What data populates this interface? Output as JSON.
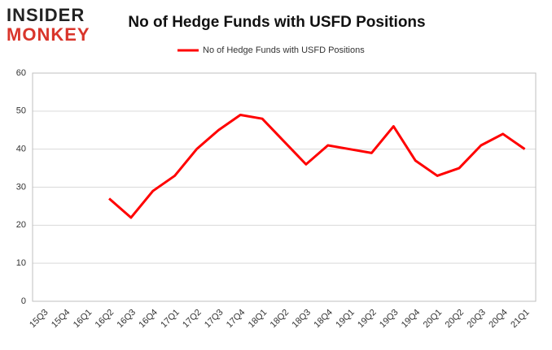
{
  "logo": {
    "line1": "INSIDER",
    "line2": "MONKEY"
  },
  "chart_data": {
    "type": "line",
    "title": "No of Hedge Funds with USFD Positions",
    "categories": [
      "15Q3",
      "15Q4",
      "16Q1",
      "16Q2",
      "16Q3",
      "16Q4",
      "17Q1",
      "17Q2",
      "17Q3",
      "17Q4",
      "18Q1",
      "18Q2",
      "18Q3",
      "18Q4",
      "19Q1",
      "19Q2",
      "19Q3",
      "19Q4",
      "20Q1",
      "20Q2",
      "20Q3",
      "20Q4",
      "21Q1"
    ],
    "series": [
      {
        "name": "No of Hedge Funds with USFD Positions",
        "color": "#ff0000",
        "values": [
          null,
          null,
          null,
          27,
          22,
          29,
          33,
          40,
          45,
          49,
          48,
          42,
          36,
          41,
          40,
          39,
          46,
          37,
          33,
          35,
          41,
          44,
          40
        ]
      }
    ],
    "ylim": [
      0,
      60
    ],
    "yticks": [
      0,
      10,
      20,
      30,
      40,
      50,
      60
    ],
    "grid": true,
    "legend": "top"
  }
}
